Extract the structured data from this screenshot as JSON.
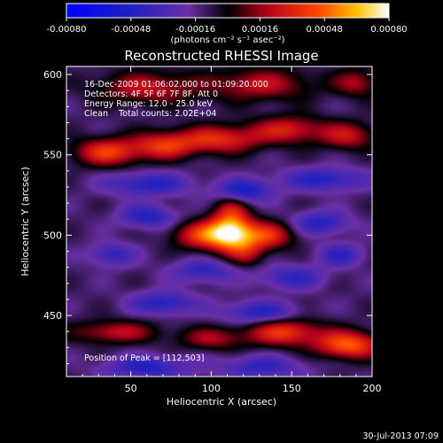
{
  "chart_data": {
    "type": "heatmap",
    "title": "Reconstructed RHESSI Image",
    "xlabel": "Heliocentric X (arcsec)",
    "ylabel": "Heliocentric Y (arcsec)",
    "xlim": [
      10,
      200
    ],
    "ylim": [
      412,
      605
    ],
    "x_ticks": [
      50,
      100,
      150,
      200
    ],
    "y_ticks": [
      450,
      500,
      550,
      600
    ],
    "colorbar": {
      "min": -0.0008,
      "max": 0.0008,
      "tick_values": [
        -0.0008,
        -0.00048,
        -0.00016,
        0.00016,
        0.00048,
        0.0008
      ],
      "tick_labels": [
        "-0.00080",
        "-0.00048",
        "-0.00016",
        "0.00016",
        "0.00048",
        "0.00080"
      ],
      "units_label": "(photons cm⁻² s⁻¹ asec⁻²)"
    },
    "annotations": [
      "16-Dec-2009 01:06:02.000 to 01:09:20.000",
      "Detectors: 4F 5F 6F 7F 8F, Att 0",
      "Energy Range: 12.0 - 25.0 keV",
      "Clean    Total counts: 2.02E+04"
    ],
    "peak_label": "Position of Peak = [112,503]",
    "peak": {
      "x": 112,
      "y": 503
    },
    "components": [
      {
        "x": 112,
        "y": 502,
        "sx": 10,
        "sy": 8,
        "amp": 0.00085
      },
      {
        "x": 93,
        "y": 500,
        "sx": 12,
        "sy": 6,
        "amp": 0.00045
      },
      {
        "x": 135,
        "y": 500,
        "sx": 11,
        "sy": 6,
        "amp": 0.00045
      },
      {
        "x": 112,
        "y": 517,
        "sx": 7,
        "sy": 6,
        "amp": 0.00025
      },
      {
        "x": 122,
        "y": 489,
        "sx": 8,
        "sy": 6,
        "amp": 0.00025
      },
      {
        "x": 35,
        "y": 552,
        "sx": 14,
        "sy": 6,
        "amp": 0.0005
      },
      {
        "x": 70,
        "y": 556,
        "sx": 14,
        "sy": 6,
        "amp": 0.00045
      },
      {
        "x": 105,
        "y": 560,
        "sx": 18,
        "sy": 6,
        "amp": 0.00045
      },
      {
        "x": 148,
        "y": 566,
        "sx": 16,
        "sy": 6,
        "amp": 0.0004
      },
      {
        "x": 185,
        "y": 562,
        "sx": 12,
        "sy": 6,
        "amp": 0.00035
      },
      {
        "x": 60,
        "y": 592,
        "sx": 22,
        "sy": 7,
        "amp": 0.00035
      },
      {
        "x": 130,
        "y": 594,
        "sx": 22,
        "sy": 7,
        "amp": 0.00035
      },
      {
        "x": 190,
        "y": 595,
        "sx": 10,
        "sy": 6,
        "amp": 0.0003
      },
      {
        "x": 120,
        "y": 528,
        "sx": 12,
        "sy": 5,
        "amp": -0.0004
      },
      {
        "x": 60,
        "y": 532,
        "sx": 18,
        "sy": 5,
        "amp": -0.00035
      },
      {
        "x": 170,
        "y": 535,
        "sx": 18,
        "sy": 5,
        "amp": -0.00035
      },
      {
        "x": 60,
        "y": 512,
        "sx": 12,
        "sy": 5,
        "amp": -0.00035
      },
      {
        "x": 168,
        "y": 508,
        "sx": 12,
        "sy": 5,
        "amp": -0.00035
      },
      {
        "x": 38,
        "y": 488,
        "sx": 10,
        "sy": 5,
        "amp": -0.0003
      },
      {
        "x": 180,
        "y": 488,
        "sx": 10,
        "sy": 5,
        "amp": -0.0003
      },
      {
        "x": 95,
        "y": 478,
        "sx": 14,
        "sy": 5,
        "amp": -0.0003
      },
      {
        "x": 150,
        "y": 474,
        "sx": 14,
        "sy": 5,
        "amp": -0.0003
      },
      {
        "x": 70,
        "y": 458,
        "sx": 14,
        "sy": 5,
        "amp": -0.00035
      },
      {
        "x": 130,
        "y": 452,
        "sx": 16,
        "sy": 5,
        "amp": -0.00035
      },
      {
        "x": 40,
        "y": 440,
        "sx": 18,
        "sy": 5,
        "amp": 0.00035
      },
      {
        "x": 100,
        "y": 436,
        "sx": 14,
        "sy": 5,
        "amp": 0.0003
      },
      {
        "x": 145,
        "y": 440,
        "sx": 16,
        "sy": 6,
        "amp": 0.0005
      },
      {
        "x": 185,
        "y": 432,
        "sx": 14,
        "sy": 6,
        "amp": 0.0006
      },
      {
        "x": 60,
        "y": 418,
        "sx": 18,
        "sy": 5,
        "amp": -0.00035
      },
      {
        "x": 130,
        "y": 418,
        "sx": 18,
        "sy": 5,
        "amp": -0.0003
      }
    ]
  },
  "footer_date": "30-Jul-2013 07:09"
}
